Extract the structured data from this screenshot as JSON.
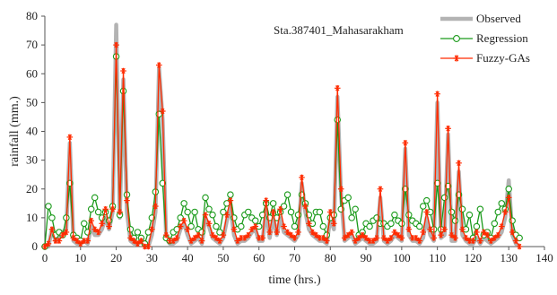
{
  "chart_data": {
    "type": "line",
    "station_label": "Sta.387401_Mahasarakham",
    "xlabel": "time (hrs.)",
    "ylabel": "rainfall (mm.)",
    "xlim": [
      0,
      140
    ],
    "ylim": [
      0,
      80
    ],
    "xticks": [
      0,
      10,
      20,
      30,
      40,
      50,
      60,
      70,
      80,
      90,
      100,
      110,
      120,
      130,
      140
    ],
    "yticks": [
      0,
      10,
      20,
      30,
      40,
      50,
      60,
      70,
      80
    ],
    "grid": false,
    "legend_position": "top-right",
    "x": [
      0,
      1,
      2,
      3,
      4,
      5,
      6,
      7,
      8,
      9,
      10,
      11,
      12,
      13,
      14,
      15,
      16,
      17,
      18,
      19,
      20,
      21,
      22,
      23,
      24,
      25,
      26,
      27,
      28,
      29,
      30,
      31,
      32,
      33,
      34,
      35,
      36,
      37,
      38,
      39,
      40,
      41,
      42,
      43,
      44,
      45,
      46,
      47,
      48,
      49,
      50,
      51,
      52,
      53,
      54,
      55,
      56,
      57,
      58,
      59,
      60,
      61,
      62,
      63,
      64,
      65,
      66,
      67,
      68,
      69,
      70,
      71,
      72,
      73,
      74,
      75,
      76,
      77,
      78,
      79,
      80,
      81,
      82,
      83,
      84,
      85,
      86,
      87,
      88,
      89,
      90,
      91,
      92,
      93,
      94,
      95,
      96,
      97,
      98,
      99,
      100,
      101,
      102,
      103,
      104,
      105,
      106,
      107,
      108,
      109,
      110,
      111,
      112,
      113,
      114,
      115,
      116,
      117,
      118,
      119,
      120,
      121,
      122,
      123,
      124,
      125,
      126,
      127,
      128,
      129,
      130,
      131,
      132,
      133
    ],
    "series": [
      {
        "name": "Observed",
        "color": "#b3b3b3",
        "marker": "none",
        "values": [
          0,
          0,
          6,
          2,
          3,
          5,
          6,
          36,
          2,
          1,
          1,
          2,
          1,
          7,
          4,
          4,
          6,
          10,
          6,
          12,
          77,
          10,
          58,
          12,
          2,
          1,
          1,
          2,
          0,
          0,
          4,
          12,
          62,
          44,
          3,
          1,
          1,
          2,
          6,
          8,
          4,
          1,
          2,
          3,
          1,
          10,
          7,
          3,
          2,
          1,
          3,
          9,
          14,
          4,
          1,
          2,
          2,
          3,
          5,
          6,
          2,
          2,
          13,
          3,
          10,
          4,
          10,
          5,
          4,
          3,
          2,
          4,
          22,
          12,
          6,
          4,
          3,
          2,
          2,
          1,
          10,
          6,
          52,
          18,
          2,
          3,
          4,
          1,
          2,
          3,
          2,
          1,
          1,
          2,
          17,
          2,
          1,
          2,
          4,
          3,
          2,
          34,
          4,
          2,
          2,
          1,
          3,
          10,
          4,
          2,
          50,
          3,
          4,
          39,
          2,
          2,
          26,
          4,
          2,
          1,
          1,
          3,
          1,
          3,
          2,
          1,
          2,
          3,
          5,
          10,
          23,
          4,
          1,
          0
        ]
      },
      {
        "name": "Regression",
        "color": "#1a9a1a",
        "marker": "circle",
        "values": [
          0,
          14,
          10,
          4,
          5,
          4,
          10,
          22,
          4,
          3,
          2,
          8,
          5,
          13,
          17,
          12,
          10,
          12,
          9,
          14,
          66,
          11,
          54,
          18,
          6,
          3,
          5,
          3,
          1,
          5,
          10,
          19,
          46,
          22,
          3,
          2,
          5,
          6,
          10,
          15,
          12,
          7,
          12,
          6,
          5,
          17,
          13,
          11,
          7,
          5,
          12,
          15,
          18,
          10,
          6,
          7,
          11,
          12,
          10,
          9,
          7,
          11,
          15,
          10,
          15,
          10,
          12,
          14,
          18,
          12,
          7,
          11,
          18,
          15,
          11,
          8,
          12,
          12,
          7,
          4,
          10,
          11,
          44,
          13,
          16,
          17,
          10,
          13,
          4,
          5,
          8,
          7,
          9,
          10,
          8,
          8,
          7,
          8,
          11,
          9,
          8,
          20,
          11,
          9,
          8,
          7,
          14,
          16,
          12,
          6,
          22,
          6,
          17,
          21,
          12,
          9,
          18,
          13,
          6,
          11,
          3,
          7,
          13,
          4,
          5,
          3,
          8,
          12,
          15,
          13,
          20,
          9,
          4,
          3
        ]
      },
      {
        "name": "Fuzzy-GAs",
        "color": "#ff2b00",
        "marker": "asterisk",
        "values": [
          0,
          1,
          6,
          2,
          2,
          4,
          5,
          38,
          3,
          2,
          1,
          2,
          2,
          9,
          6,
          5,
          8,
          13,
          7,
          13,
          70,
          12,
          61,
          16,
          3,
          2,
          1,
          2,
          0,
          0,
          6,
          14,
          63,
          47,
          4,
          2,
          2,
          3,
          7,
          9,
          6,
          2,
          3,
          4,
          2,
          11,
          8,
          4,
          3,
          2,
          4,
          11,
          16,
          6,
          2,
          3,
          3,
          4,
          6,
          7,
          3,
          3,
          16,
          5,
          12,
          5,
          13,
          7,
          5,
          4,
          3,
          5,
          24,
          14,
          8,
          5,
          4,
          3,
          3,
          2,
          12,
          8,
          55,
          20,
          3,
          4,
          5,
          2,
          3,
          4,
          3,
          2,
          2,
          3,
          20,
          3,
          2,
          3,
          5,
          4,
          3,
          36,
          6,
          3,
          3,
          2,
          5,
          12,
          6,
          3,
          53,
          4,
          6,
          41,
          4,
          3,
          29,
          6,
          3,
          2,
          2,
          5,
          2,
          5,
          4,
          2,
          3,
          4,
          7,
          12,
          17,
          5,
          2,
          0
        ]
      }
    ]
  }
}
